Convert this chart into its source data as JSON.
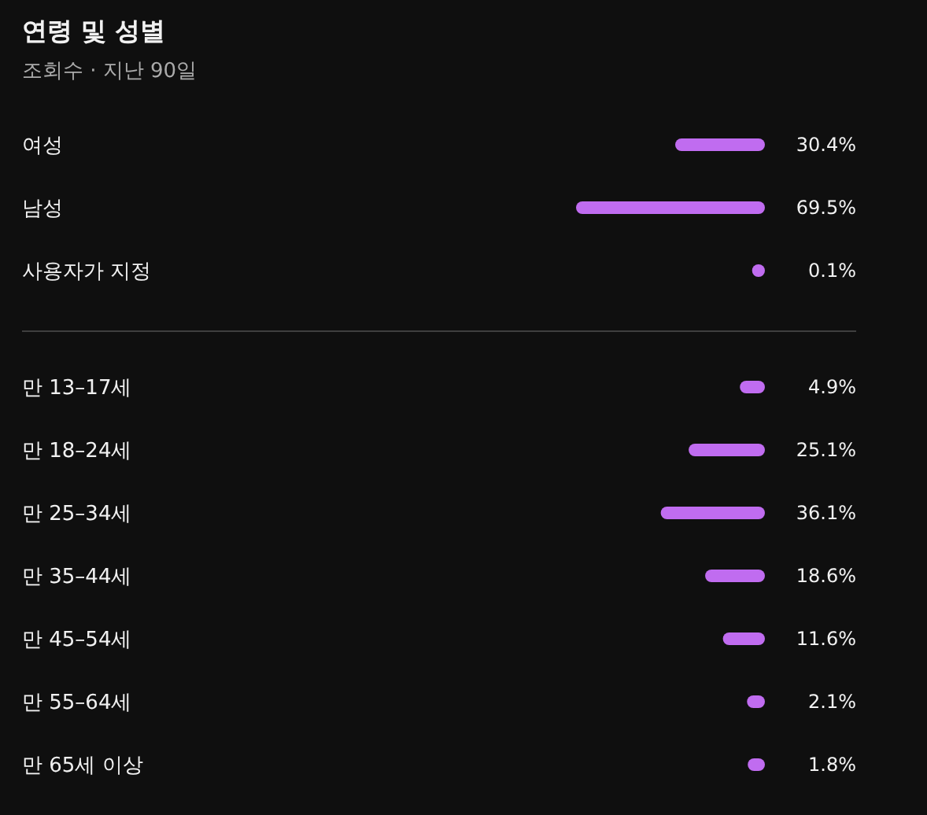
{
  "chart_data": [
    {
      "type": "bar",
      "orientation": "horizontal",
      "title": "연령 및 성별",
      "subtitle": "조회수 · 지난 90일",
      "relative": false,
      "categories": [
        "여성",
        "남성",
        "사용자가 지정"
      ],
      "values": [
        30.4,
        69.5,
        0.1
      ],
      "color": "#c06cf0",
      "value_labels": [
        "30.4%",
        "69.5%",
        "0.1%"
      ]
    },
    {
      "type": "bar",
      "orientation": "horizontal",
      "categories": [
        "만 13–17세",
        "만 18–24세",
        "만 25–34세",
        "만 35–44세",
        "만 45–54세",
        "만 55–64세",
        "만 65세 이상"
      ],
      "values": [
        4.9,
        25.1,
        36.1,
        18.6,
        11.6,
        2.1,
        1.8
      ],
      "color": "#c06cf0",
      "value_labels": [
        "4.9%",
        "25.1%",
        "36.1%",
        "18.6%",
        "11.6%",
        "2.1%",
        "1.8%"
      ]
    }
  ]
}
